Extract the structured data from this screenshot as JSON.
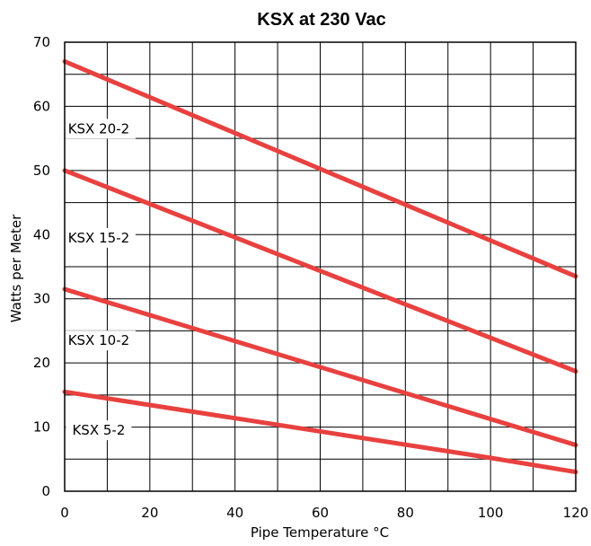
{
  "chart_data": {
    "type": "line",
    "title": "KSX at 230 Vac",
    "xlabel": "Pipe Temperature °C",
    "ylabel": "Watts per Meter",
    "xlim": [
      0,
      120
    ],
    "ylim": [
      0,
      70
    ],
    "x_ticks": [
      "0",
      "20",
      "40",
      "60",
      "80",
      "100",
      "120"
    ],
    "y_ticks": [
      "0",
      "10",
      "20",
      "30",
      "40",
      "50",
      "60",
      "70"
    ],
    "x_minor_step": 10,
    "y_minor_step": 5,
    "grid": true,
    "line_color": "#e8413f",
    "series": [
      {
        "name": "KSX 20-2",
        "x": [
          0,
          120
        ],
        "y": [
          67,
          33.5
        ],
        "label_at": [
          8,
          56.5
        ]
      },
      {
        "name": "KSX 15-2",
        "x": [
          0,
          120
        ],
        "y": [
          50,
          18.7
        ],
        "label_at": [
          8,
          39.5
        ]
      },
      {
        "name": "KSX 10-2",
        "x": [
          0,
          120
        ],
        "y": [
          31.5,
          7.2
        ],
        "label_at": [
          8,
          23.5
        ]
      },
      {
        "name": "KSX 5-2",
        "x": [
          0,
          100,
          120
        ],
        "y": [
          15.5,
          5.2,
          3.0
        ],
        "label_at": [
          8,
          9.5
        ]
      }
    ]
  }
}
